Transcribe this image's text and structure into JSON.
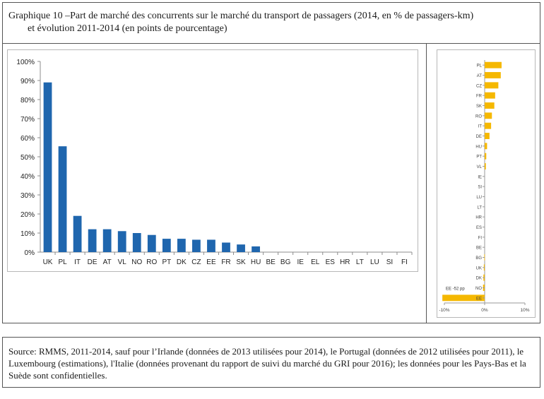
{
  "title": {
    "line1": "Graphique 10 –Part de marché des concurrents sur le marché du transport de passagers (2014, en % de passagers-km)",
    "line2": "et évolution 2011-2014 (en points de pourcentage)"
  },
  "source": "Source: RMMS, 2011-2014, sauf pour l’Irlande (données de 2013 utilisées pour 2014), le Portugal (données de 2012 utilisées pour 2011), le Luxembourg (estimations), l'Italie (données provenant du rapport de suivi du marché du GRI pour 2016); les données pour les Pays-Bas et la Suède sont confidentielles.",
  "chart_data": [
    {
      "type": "bar",
      "title": "",
      "xlabel": "",
      "ylabel": "",
      "ylim": [
        0,
        100
      ],
      "yticks": [
        "0%",
        "10%",
        "20%",
        "30%",
        "40%",
        "50%",
        "60%",
        "70%",
        "80%",
        "90%",
        "100%"
      ],
      "color": "#1f66ae",
      "categories": [
        "UK",
        "PL",
        "IT",
        "DE",
        "AT",
        "VL",
        "NO",
        "RO",
        "PT",
        "DK",
        "CZ",
        "EE",
        "FR",
        "SK",
        "HU",
        "BE",
        "BG",
        "IE",
        "EL",
        "ES",
        "HR",
        "LT",
        "LU",
        "SI",
        "FI"
      ],
      "values": [
        89,
        55.5,
        19,
        12,
        12,
        11,
        10,
        9,
        7,
        7,
        6.5,
        6.5,
        5,
        4,
        3,
        0,
        0,
        0,
        0,
        0,
        0,
        0,
        0,
        0,
        0
      ]
    },
    {
      "type": "bar",
      "orientation": "horizontal",
      "title": "",
      "color": "#f5b800",
      "xlim": [
        -10,
        10
      ],
      "xticks": [
        "-10%",
        "0%",
        "10%"
      ],
      "categories": [
        "PL",
        "AT",
        "CZ",
        "FR",
        "SK",
        "RO",
        "IT",
        "DE",
        "HU",
        "PT",
        "VL",
        "IE",
        "SI",
        "LU",
        "LT",
        "HR",
        "ES",
        "FI",
        "BE",
        "BG",
        "UK",
        "DK",
        "NO",
        "EE"
      ],
      "values": [
        4.2,
        4.0,
        3.4,
        2.6,
        2.4,
        1.8,
        1.6,
        1.2,
        0.6,
        0.4,
        0.3,
        0,
        0,
        0,
        0,
        0,
        0,
        0,
        0,
        -0.1,
        -0.2,
        -0.3,
        -0.4,
        -10.5
      ],
      "annotation": "EE -52 pp"
    }
  ]
}
